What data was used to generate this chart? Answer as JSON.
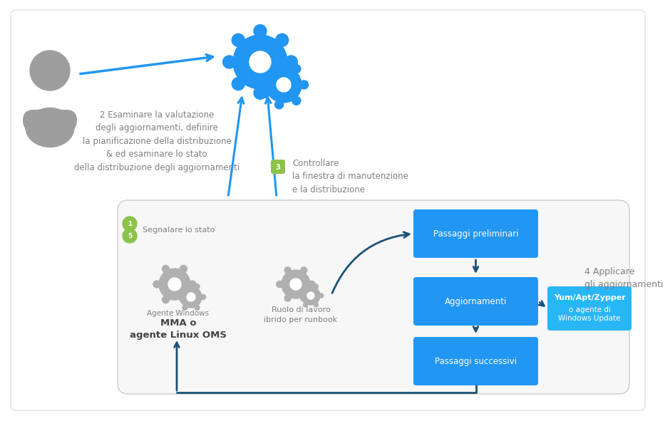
{
  "bg_color": "#ffffff",
  "gray_border": "#d0d0d0",
  "blue_gear": "#2196f3",
  "blue_arrow": "#1a5276",
  "blue_box": "#2196f3",
  "cyan_box": "#29b6f6",
  "gray_icon": "#9e9e9e",
  "gray_light": "#b0b0b0",
  "gray_text": "#808080",
  "dark_text": "#555555",
  "green_badge": "#8bc34a",
  "white": "#ffffff",
  "step2_text": "2 Esaminare la valutazione\ndegli aggiornamenti, definire\nla pianificazione della distribuzione\n& ed esaminare lo stato\ndella distribuzione degli aggiornamenti",
  "step3_badge": "3",
  "step3_text": "Controllare\nla finestra di manutenzione\ne la distribuzione",
  "step4_text": "4 Applicare\ngli aggiornamenti",
  "box1_text": "Passaggi preliminari",
  "box2_text": "Aggiornamenti",
  "box3_text": "Passaggi successivi",
  "yum_line1": "Yum/Apt/Zypper",
  "yum_line2": "o agente di\nWindows Update",
  "agent_label1": "Agente Windows",
  "agent_label2": "MMA o\nagente Linux OMS",
  "runbook_label": "Ruolo di lavoro\nibrido per runbook",
  "badge_label": "Segnalare lo stato"
}
